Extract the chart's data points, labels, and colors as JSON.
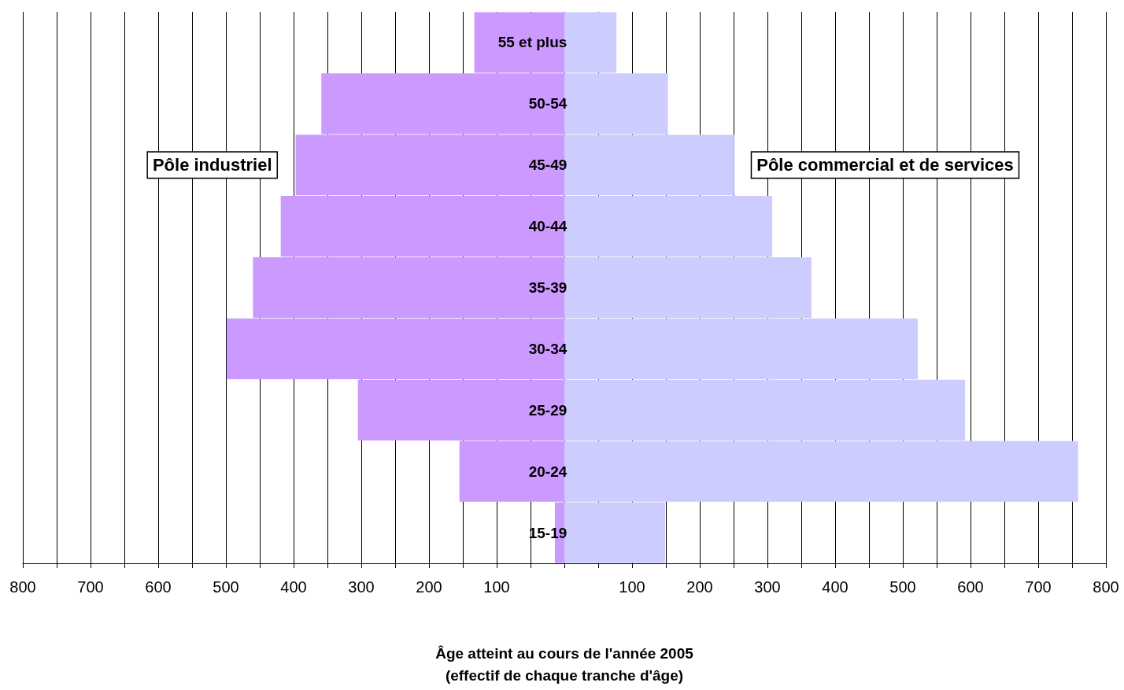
{
  "chart_data": {
    "type": "bar",
    "orientation": "horizontal",
    "stacked": true,
    "xlabel": "Âge atteint au cours de l'année 2005\n(effectif de chaque tranche d'âge)",
    "categories": [
      "55 et plus",
      "50-54",
      "45-49",
      "40-44",
      "35-39",
      "30-34",
      "25-29",
      "20-24",
      "15-19"
    ],
    "series": [
      {
        "name": "Pôle industriel",
        "color": "#cc99ff",
        "values": [
          -133,
          -359,
          -397,
          -419,
          -460,
          -499,
          -305,
          -155,
          -14
        ]
      },
      {
        "name": "Pôle commercial et de services",
        "color": "#ccccff",
        "values": [
          77,
          153,
          251,
          307,
          365,
          522,
          592,
          759,
          149
        ]
      }
    ],
    "xlim": [
      -800,
      800
    ],
    "xticks": [
      {
        "value": -800,
        "label": "800"
      },
      {
        "value": -750,
        "label": null
      },
      {
        "value": -700,
        "label": "700"
      },
      {
        "value": -650,
        "label": null
      },
      {
        "value": -600,
        "label": "600"
      },
      {
        "value": -550,
        "label": null
      },
      {
        "value": -500,
        "label": "500"
      },
      {
        "value": -450,
        "label": null
      },
      {
        "value": -400,
        "label": "400"
      },
      {
        "value": -350,
        "label": null
      },
      {
        "value": -300,
        "label": "300"
      },
      {
        "value": -250,
        "label": null
      },
      {
        "value": -200,
        "label": "200"
      },
      {
        "value": -150,
        "label": null
      },
      {
        "value": -100,
        "label": "100"
      },
      {
        "value": -50,
        "label": null
      },
      {
        "value": 0,
        "label": null
      },
      {
        "value": 50,
        "label": null
      },
      {
        "value": 100,
        "label": "100"
      },
      {
        "value": 150,
        "label": null
      },
      {
        "value": 200,
        "label": "200"
      },
      {
        "value": 250,
        "label": null
      },
      {
        "value": 300,
        "label": "300"
      },
      {
        "value": 350,
        "label": null
      },
      {
        "value": 400,
        "label": "400"
      },
      {
        "value": 450,
        "label": null
      },
      {
        "value": 500,
        "label": "500"
      },
      {
        "value": 550,
        "label": null
      },
      {
        "value": 600,
        "label": "600"
      },
      {
        "value": 650,
        "label": null
      },
      {
        "value": 700,
        "label": "700"
      },
      {
        "value": 750,
        "label": null
      },
      {
        "value": 800,
        "label": "800"
      }
    ],
    "grid": "x",
    "legend": false
  }
}
